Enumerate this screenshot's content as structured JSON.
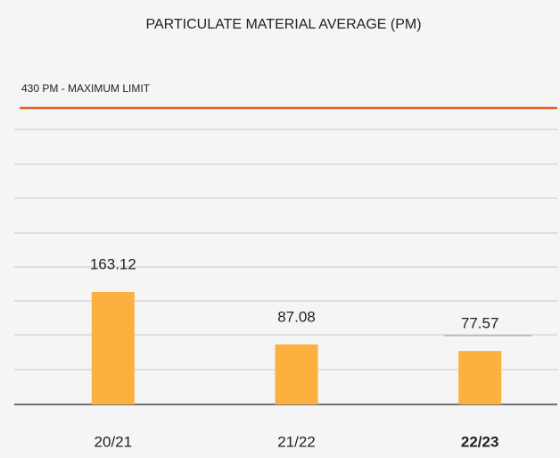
{
  "chart_data": {
    "type": "bar",
    "title": "PARTICULATE MATERIAL AVERAGE (PM)",
    "categories": [
      "20/21",
      "21/22",
      "22/23"
    ],
    "values": [
      163.12,
      87.08,
      77.57
    ],
    "color": "#fbb040",
    "ylim": [
      0,
      430
    ],
    "limit": {
      "value": 430,
      "label": "430 PM - MAXIMUM LIMIT",
      "color": "#e0622a"
    }
  }
}
